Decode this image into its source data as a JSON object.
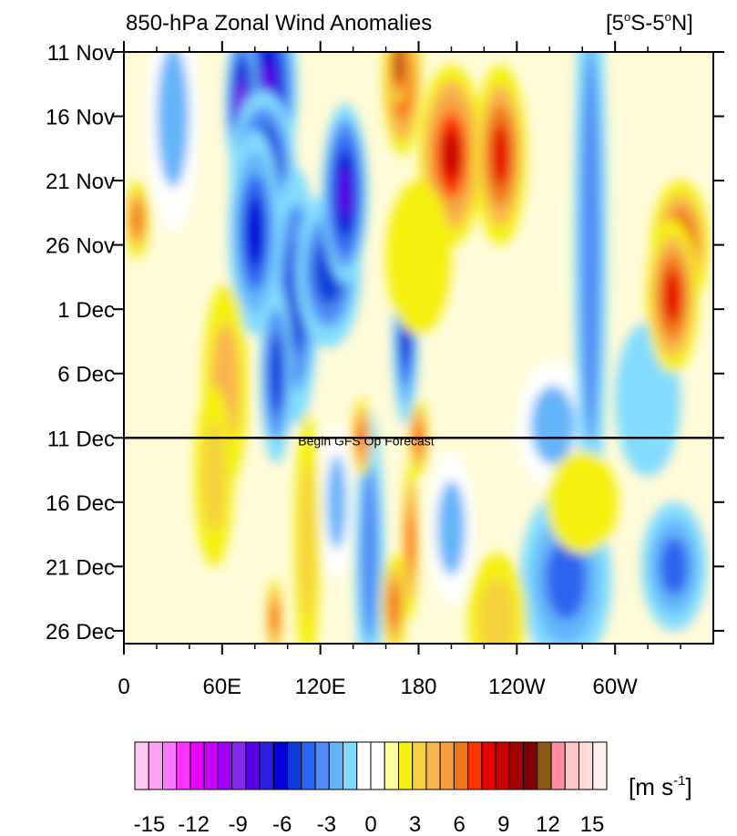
{
  "chart_data": {
    "type": "heatmap",
    "title": "850-hPa Zonal Wind Anomalies",
    "region": {
      "text": "[5",
      "deg1": "o",
      "mid": "S-5",
      "deg2": "o",
      "end": "N]"
    },
    "x_ticks": [
      {
        "lon": 0,
        "label": "0"
      },
      {
        "lon": 60,
        "label": "60E"
      },
      {
        "lon": 120,
        "label": "120E"
      },
      {
        "lon": 180,
        "label": "180"
      },
      {
        "lon": 240,
        "label": "120W"
      },
      {
        "lon": 300,
        "label": "60W"
      }
    ],
    "y_ticks": [
      {
        "day": 0,
        "label": "11 Nov"
      },
      {
        "day": 5,
        "label": "16 Nov"
      },
      {
        "day": 10,
        "label": "21 Nov"
      },
      {
        "day": 15,
        "label": "26 Nov"
      },
      {
        "day": 20,
        "label": "1 Dec"
      },
      {
        "day": 25,
        "label": "6 Dec"
      },
      {
        "day": 30,
        "label": "11 Dec"
      },
      {
        "day": 35,
        "label": "16 Dec"
      },
      {
        "day": 40,
        "label": "21 Dec"
      },
      {
        "day": 45,
        "label": "26 Dec"
      }
    ],
    "xlim": [
      0,
      360
    ],
    "ylim_days": [
      0,
      46
    ],
    "forecast_line": {
      "day": 30,
      "label": "Begin GFS Op Forecast"
    },
    "colorbar": {
      "unit_prefix": "[m s",
      "unit_exp": "-1",
      "unit_suffix": "]",
      "labels": [
        "-15",
        "-12",
        "-9",
        "-6",
        "-3",
        "0",
        "3",
        "6",
        "9",
        "12",
        "15"
      ],
      "colors": [
        "#ffc8f0",
        "#ffa0f5",
        "#ff78ff",
        "#ff32ff",
        "#e600ff",
        "#c800ff",
        "#a000ff",
        "#8228f0",
        "#5a00e6",
        "#2d1ee1",
        "#0000d7",
        "#0a3cdc",
        "#2d64f0",
        "#508cf5",
        "#64b4fa",
        "#82dcff",
        "#ffffff",
        "#ffffff",
        "#ffffa0",
        "#f5f00a",
        "#f5d23c",
        "#fab450",
        "#f5a03c",
        "#f07814",
        "#ff3200",
        "#e60000",
        "#c80000",
        "#a00000",
        "#7d0000",
        "#8c5a14",
        "#ff8ca0",
        "#ffc8c8",
        "#ffdcdc",
        "#fff0f0"
      ]
    },
    "anomaly_blobs": [
      {
        "lon": 88,
        "day": 3,
        "rx": 18,
        "ry": 8,
        "v": -9
      },
      {
        "lon": 72,
        "day": 4,
        "rx": 10,
        "ry": 6,
        "v": -10
      },
      {
        "lon": 85,
        "day": 9,
        "rx": 20,
        "ry": 6,
        "v": -8
      },
      {
        "lon": 80,
        "day": 14,
        "rx": 16,
        "ry": 8,
        "v": -7
      },
      {
        "lon": 105,
        "day": 19,
        "rx": 14,
        "ry": 10,
        "v": -6
      },
      {
        "lon": 125,
        "day": 17,
        "rx": 20,
        "ry": 6,
        "v": -6
      },
      {
        "lon": 135,
        "day": 11,
        "rx": 14,
        "ry": 7,
        "v": -9
      },
      {
        "lon": 93,
        "day": 25,
        "rx": 10,
        "ry": 7,
        "v": -6
      },
      {
        "lon": 172,
        "day": 22,
        "rx": 8,
        "ry": 7,
        "v": -7
      },
      {
        "lon": 30,
        "day": 5,
        "rx": 16,
        "ry": 9,
        "v": -3
      },
      {
        "lon": 262,
        "day": 29,
        "rx": 22,
        "ry": 5,
        "v": -3
      },
      {
        "lon": 285,
        "day": 15,
        "rx": 10,
        "ry": 25,
        "v": -4
      },
      {
        "lon": 320,
        "day": 27,
        "rx": 20,
        "ry": 6,
        "v": -2
      },
      {
        "lon": 150,
        "day": 39,
        "rx": 9,
        "ry": 11,
        "v": -4
      },
      {
        "lon": 130,
        "day": 35,
        "rx": 10,
        "ry": 6,
        "v": -3
      },
      {
        "lon": 200,
        "day": 37,
        "rx": 14,
        "ry": 6,
        "v": -3
      },
      {
        "lon": 270,
        "day": 41,
        "rx": 28,
        "ry": 7,
        "v": -5
      },
      {
        "lon": 336,
        "day": 40,
        "rx": 20,
        "ry": 5,
        "v": -5
      },
      {
        "lon": 170,
        "day": 2,
        "rx": 12,
        "ry": 6,
        "v": 9
      },
      {
        "lon": 168,
        "day": 1,
        "rx": 6,
        "ry": 3,
        "v": 12
      },
      {
        "lon": 200,
        "day": 8,
        "rx": 20,
        "ry": 7,
        "v": 9
      },
      {
        "lon": 230,
        "day": 8,
        "rx": 16,
        "ry": 7,
        "v": 8
      },
      {
        "lon": 340,
        "day": 15,
        "rx": 18,
        "ry": 5,
        "v": 8
      },
      {
        "lon": 335,
        "day": 19,
        "rx": 16,
        "ry": 6,
        "v": 8
      },
      {
        "lon": 180,
        "day": 16,
        "rx": 20,
        "ry": 6,
        "v": 2
      },
      {
        "lon": 62,
        "day": 26,
        "rx": 14,
        "ry": 8,
        "v": 4
      },
      {
        "lon": 145,
        "day": 30,
        "rx": 6,
        "ry": 3,
        "v": 7
      },
      {
        "lon": 180,
        "day": 30,
        "rx": 6,
        "ry": 3,
        "v": 7
      },
      {
        "lon": 175,
        "day": 38,
        "rx": 5,
        "ry": 6,
        "v": 7
      },
      {
        "lon": 165,
        "day": 43,
        "rx": 8,
        "ry": 4,
        "v": 6
      },
      {
        "lon": 92,
        "day": 44,
        "rx": 5,
        "ry": 3,
        "v": 7
      },
      {
        "lon": 55,
        "day": 33,
        "rx": 12,
        "ry": 7,
        "v": 3
      },
      {
        "lon": 228,
        "day": 44,
        "rx": 18,
        "ry": 5,
        "v": 3
      },
      {
        "lon": 8,
        "day": 13,
        "rx": 8,
        "ry": 3,
        "v": 6
      },
      {
        "lon": 112,
        "day": 38,
        "rx": 8,
        "ry": 10,
        "v": 3
      },
      {
        "lon": 280,
        "day": 35,
        "rx": 22,
        "ry": 4,
        "v": 2
      }
    ]
  }
}
